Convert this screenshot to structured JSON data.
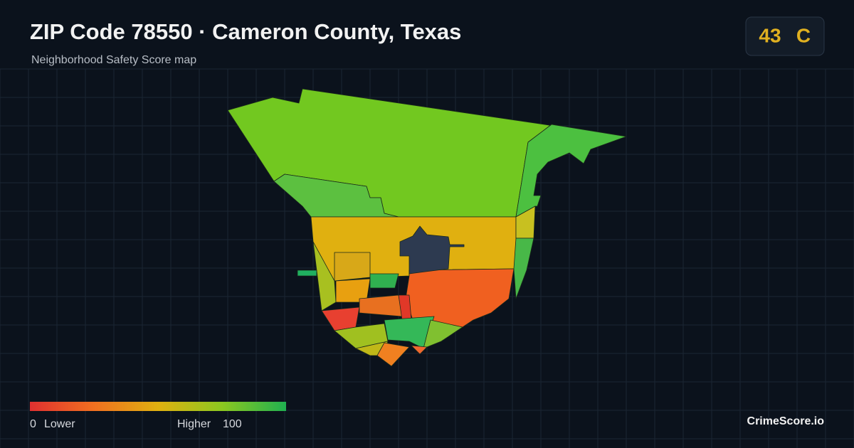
{
  "header": {
    "title": "ZIP Code 78550 · Cameron County, Texas",
    "subtitle": "Neighborhood Safety Score map"
  },
  "score": {
    "value": 43,
    "grade": "C"
  },
  "legend": {
    "min": 0,
    "min_label": "Lower",
    "max_label": "Higher",
    "max": 100
  },
  "brand": "CrimeScore.io"
}
